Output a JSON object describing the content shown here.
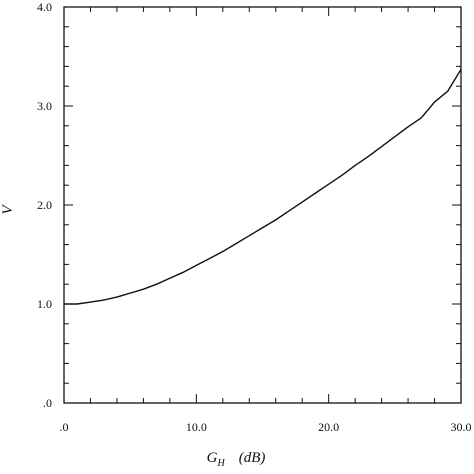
{
  "chart_data": {
    "type": "line",
    "title": "",
    "xlabel": {
      "main": "G",
      "sub": "H",
      "unit": "(dB)"
    },
    "ylabel": "V",
    "xlim": [
      0,
      30
    ],
    "ylim": [
      0,
      4
    ],
    "x_ticks": [
      {
        "value": 0,
        "label": ".0"
      },
      {
        "value": 10,
        "label": "10.0"
      },
      {
        "value": 20,
        "label": "20.0"
      },
      {
        "value": 30,
        "label": "30.0"
      }
    ],
    "y_ticks": [
      {
        "value": 0,
        "label": ".0"
      },
      {
        "value": 1,
        "label": "1.0"
      },
      {
        "value": 2,
        "label": "2.0"
      },
      {
        "value": 3,
        "label": "3.0"
      },
      {
        "value": 4,
        "label": "4.0"
      }
    ],
    "grid": false,
    "series": [
      {
        "x": [
          0,
          1,
          2,
          3,
          4,
          5,
          6,
          7,
          8,
          9,
          10,
          11,
          12,
          13,
          14,
          15,
          16,
          17,
          18,
          19,
          20,
          21,
          22,
          23,
          24,
          25,
          26,
          27,
          28,
          29,
          30
        ],
        "y": [
          1.0,
          1.0,
          1.02,
          1.04,
          1.07,
          1.11,
          1.15,
          1.2,
          1.26,
          1.32,
          1.39,
          1.46,
          1.53,
          1.61,
          1.69,
          1.77,
          1.85,
          1.94,
          2.03,
          2.12,
          2.21,
          2.3,
          2.4,
          2.49,
          2.59,
          2.69,
          2.79,
          2.88,
          3.04,
          3.15,
          3.37
        ]
      }
    ]
  }
}
